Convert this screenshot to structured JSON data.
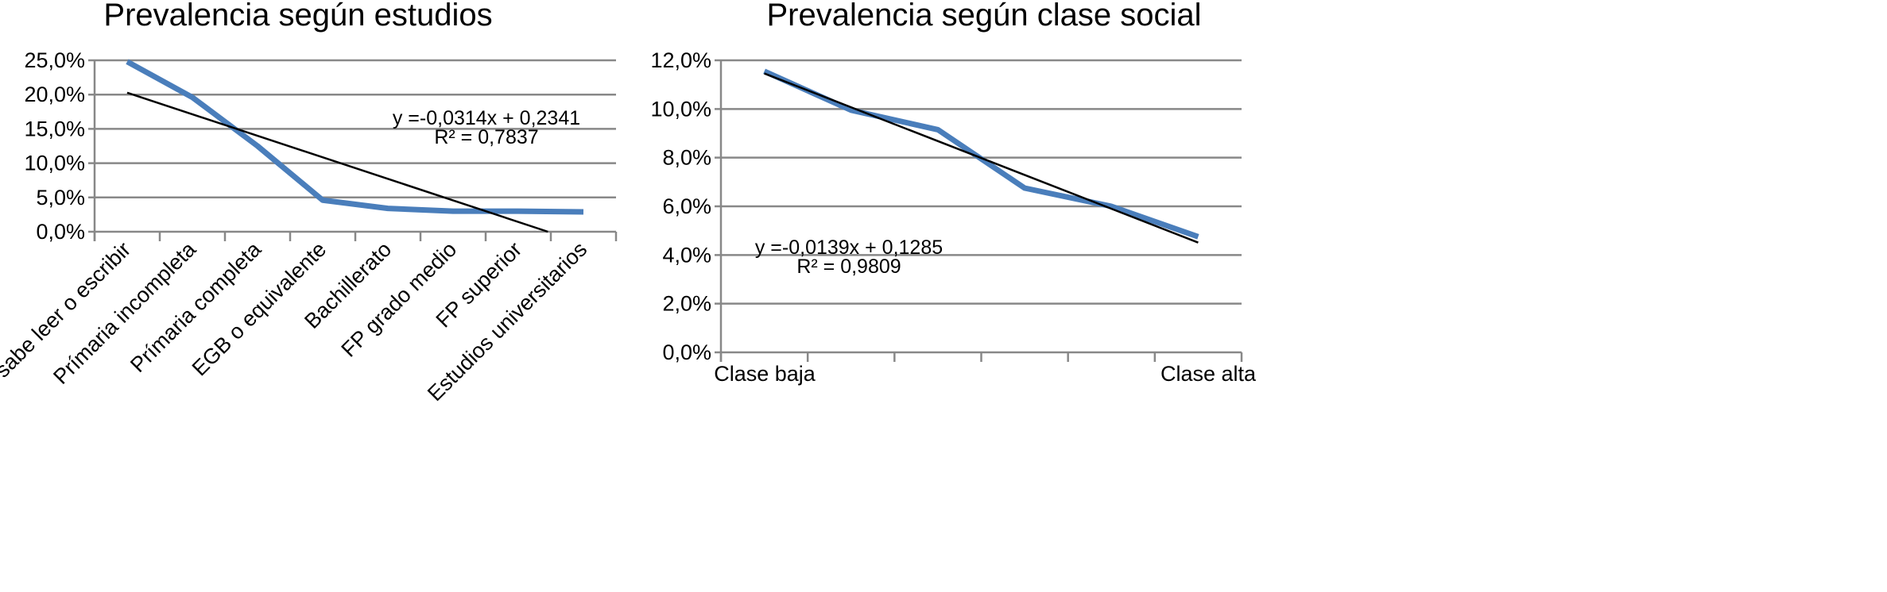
{
  "chart_data": [
    {
      "type": "line",
      "title": "Prevalencia según estudios",
      "categories": [
        "No sabe leer o escribir",
        "Prímaria incompleta",
        "Prímaria completa",
        "EGB o equivalente",
        "Bachillerato",
        "FP grado medio",
        "FP superior",
        "Estudios universitarios"
      ],
      "series": [
        {
          "values": [
            0.248,
            0.196,
            0.125,
            0.046,
            0.034,
            0.03,
            0.03,
            0.029
          ],
          "color": "#4a7ebb"
        }
      ],
      "trendline": {
        "slope": -0.0314,
        "intercept": 0.2341,
        "color": "#000000",
        "equation": "y =-0,0314x + 0,2341",
        "r2": "R² = 0,7837"
      },
      "ylim": [
        0,
        0.25
      ],
      "yticks": [
        0,
        0.05,
        0.1,
        0.15,
        0.2,
        0.25
      ],
      "ytick_labels": [
        "0,0%",
        "5,0%",
        "10,0%",
        "15,0%",
        "20,0%",
        "25,0%"
      ],
      "grid": true,
      "legend": "none"
    },
    {
      "type": "line",
      "title": "Prevalencia según clase social",
      "categories": [
        "Clase baja",
        "",
        "",
        "",
        "",
        "Clase alta"
      ],
      "series": [
        {
          "values": [
            0.1155,
            0.0995,
            0.0915,
            0.0675,
            0.06,
            0.0475
          ],
          "color": "#4a7ebb"
        }
      ],
      "trendline": {
        "slope": -0.0139,
        "intercept": 0.1285,
        "color": "#000000",
        "equation": "y =-0,0139x + 0,1285",
        "r2": "R² = 0,9809"
      },
      "ylim": [
        0,
        0.12
      ],
      "yticks": [
        0,
        0.02,
        0.04,
        0.06,
        0.08,
        0.1,
        0.12
      ],
      "ytick_labels": [
        "0,0%",
        "2,0%",
        "4,0%",
        "6,0%",
        "8,0%",
        "10,0%",
        "12,0%"
      ],
      "grid": true,
      "legend": "none"
    }
  ]
}
